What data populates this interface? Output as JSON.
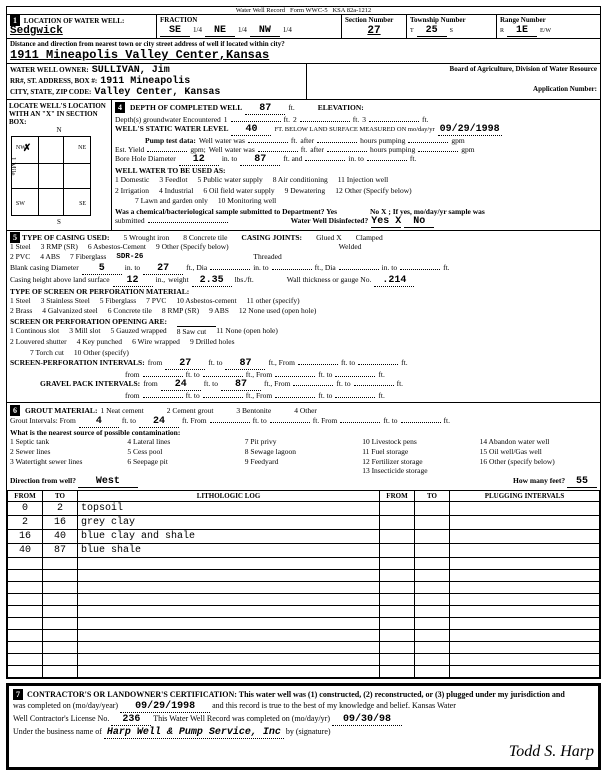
{
  "header": {
    "top_labels": [
      "Water Well Record",
      "Form WWC-5",
      "KSA 82a-1212"
    ],
    "location_label": "LOCATION OF WATER WELL:",
    "location": "Sedgwick",
    "fraction_label": "FRACTION",
    "fraction_parts": [
      "SE",
      "1/4",
      "NE",
      "1/4",
      "NW",
      "1/4"
    ],
    "section_label": "Section Number",
    "section": "27",
    "township_label": "Township Number",
    "township": "25",
    "township_dir": "S",
    "range_label": "Range Number",
    "range": "1E",
    "range_dir": "E/W"
  },
  "address": {
    "dist_label": "Distance and direction from nearest town or city street address of well if located within city?",
    "line1": "1911 Mineapolis    Valley Center,Kansas",
    "owner_label": "WATER WELL OWNER:",
    "owner": "SULLIVAN, Jim",
    "rr_label": "RR#, ST. ADDRESS, BOX #:",
    "rr": "1911 Mineapolis",
    "city_label": "CITY, STATE, ZIP CODE:",
    "city": "Valley Center, Kansas",
    "board": "Board of Agriculture, Division of Water Resource",
    "app_label": "Application Number:"
  },
  "locate_label": "LOCATE WELL'S LOCATION WITH AN \"X\" IN SECTION BOX:",
  "compass": {
    "n": "N",
    "s": "S",
    "e": "E",
    "w": "W",
    "ne": "NE",
    "nw": "NW",
    "se": "SE",
    "sw": "SW",
    "mile": "1 Mile"
  },
  "sec4": {
    "title": "DEPTH OF COMPLETED WELL",
    "depth": "87",
    "depth_unit": "ft.",
    "elev_label": "ELEVATION:",
    "gw_label": "Depth(s) groundwater Encountered",
    "gw_1": "1",
    "gw_2": "2",
    "gw_3": "3",
    "static_label": "WELL'S STATIC WATER LEVEL",
    "static": "40",
    "static_note": "FT. BELOW LAND SURFACE MEASURED ON mo/day/yr",
    "static_date": "09/29/1998",
    "pump_label": "Pump test data:",
    "pump_items": [
      "Well water was",
      "ft.",
      "after",
      "hours pumping",
      "gpm"
    ],
    "yield_label": "Est. Yield",
    "bore_label": "Bore Hole Diameter",
    "bore_d": "12",
    "bore_to": "87",
    "use_label": "WELL WATER TO BE USED AS:",
    "uses": [
      "1 Domestic",
      "2 Irrigation",
      "3 Feedlot",
      "4 Industrial",
      "5 Public water supply",
      "6 Oil field water supply",
      "7 Lawn and garden only",
      "8 Air conditioning",
      "9 Dewatering",
      "10 Monitoring well",
      "11 Injection well",
      "12 Other (Specify below)"
    ],
    "chem_q": "Was a chemical/bacteriological sample submitted to Department? Yes",
    "chem_no": "No  X ; If yes, mo/day/yr sample was",
    "submitted": "submitted",
    "disinfect": "Water Well Disinfected?",
    "dis_yes": "Yes  X",
    "dis_no": "No"
  },
  "sec5": {
    "title": "TYPE OF CASING USED:",
    "items": [
      "1 Steel",
      "2 PVC",
      "3 RMP (SR)",
      "4 ABS",
      "5 Wrought iron",
      "6 Asbestos-Cement",
      "7 Fiberglass",
      "8 Concrete tile",
      "9 Other (Specify below)"
    ],
    "sdr": "SDR-26",
    "joints": "CASING JOINTS:",
    "joint_items": [
      "Glued  X",
      "Clamped",
      "Welded",
      "Threaded"
    ],
    "blank_d": "Blank casing Diameter",
    "bd1": "5",
    "bd2": "27",
    "height_label": "Casing height above land surface",
    "height": "12",
    "weight_label": "weight",
    "weight": "2.35",
    "wall_label": "Wall thickness or gauge No.",
    "wall": ".214",
    "screen_label": "TYPE OF SCREEN OR PERFORATION MATERIAL:",
    "screen_items": [
      "1 Steel",
      "2 Brass",
      "3 Stainless Steel",
      "4 Galvanized steel",
      "5 Fiberglass",
      "6 Concrete tile",
      "7 PVC",
      "8 RMP (SR)",
      "9 ABS",
      "10 Asbestos-cement",
      "11 other (specify)",
      "12 None used (open hole)"
    ],
    "opening_label": "SCREEN OR PERFORATION OPENING ARE:",
    "opening_items": [
      "1 Continous slot",
      "2 Louvered shutter",
      "3 Mill slot",
      "4 Key punched",
      "5 Gauzed wrapped",
      "6 Wire wrapped",
      "7 Torch cut",
      "8 Saw cut",
      "9 Drilled holes",
      "10 Other (specify)",
      "11 None (open hole)"
    ],
    "perf_label": "SCREEN-PERFORATION INTERVALS:",
    "perf_from": "27",
    "perf_to": "87",
    "gravel_label": "GRAVEL PACK INTERVALS:",
    "gravel_from": "24",
    "gravel_to": "87"
  },
  "sec6": {
    "title": "GROUT MATERIAL:",
    "items": [
      "1 Neat cement",
      "2 Cement grout",
      "3 Bentonite",
      "4 Other"
    ],
    "intervals_label": "Grout Intervals: From",
    "gi_from": "4",
    "gi_to": "24",
    "contam_label": "What is the nearest source of possible contamination:",
    "contam_items": [
      "1 Septic tank",
      "2 Sewer lines",
      "3 Watertight sewer lines",
      "4 Lateral lines",
      "5 Cess pool",
      "6 Seepage pit",
      "7 Pit privy",
      "8 Sewage lagoon",
      "9 Feedyard",
      "10 Livestock pens",
      "11 Fuel storage",
      "12 Fertilizer storage",
      "13 Insecticide storage",
      "14 Abandon water well",
      "15 Oil well/Gas well",
      "16 Other (specify below)"
    ],
    "dir_label": "Direction from well?",
    "dir": "West",
    "feet_label": "How many feet?",
    "feet": "55"
  },
  "log": {
    "cols": [
      "FROM",
      "TO",
      "LITHOLOGIC LOG",
      "FROM",
      "TO",
      "PLUGGING INTERVALS"
    ],
    "rows": [
      [
        "0",
        "2",
        "topsoil",
        "",
        "",
        ""
      ],
      [
        "2",
        "16",
        "grey clay",
        "",
        "",
        ""
      ],
      [
        "16",
        "40",
        "blue clay and shale",
        "",
        "",
        ""
      ],
      [
        "40",
        "87",
        "blue shale",
        "",
        "",
        ""
      ]
    ]
  },
  "cert": {
    "text1": "CONTRACTOR'S OR LANDOWNER'S CERTIFICATION: This water well was (1) constructed, (2) reconstructed, or (3) plugged under my jurisdiction and",
    "text2": "was completed on (mo/day/year)",
    "date1": "09/29/1998",
    "text3": "and this record is true to the best of my knowledge and belief. Kansas Water",
    "text4": "Well Contractor's License No.",
    "license": "236",
    "text5": "This Water Well Record was completed on (mo/day/yr)",
    "date2": "09/30/98",
    "text6": "Under the business name of",
    "biz": "Harp Well & Pump Service, Inc",
    "text7": "by (signature)",
    "sig": "Todd S. Harp"
  }
}
